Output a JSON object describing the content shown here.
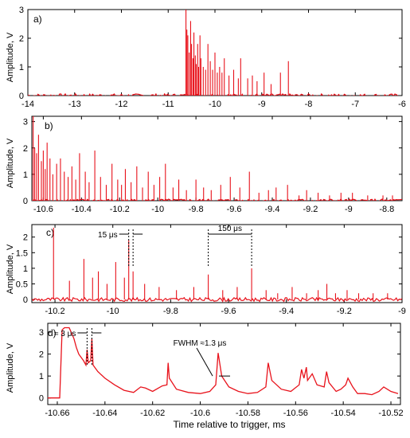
{
  "colors": {
    "trace": "#e8121b",
    "axis": "#000000",
    "background": "#ffffff"
  },
  "xlabel_main": "Time relative to trigger, ms",
  "chart_data": [
    {
      "type": "line",
      "panel": "a)",
      "ylabel": "Amplitude, V",
      "xlim": [
        -14,
        -6
      ],
      "ylim": [
        0,
        3
      ],
      "xticks": [
        -14,
        -13,
        -12,
        -11,
        -10,
        -9,
        -8,
        -7,
        -6
      ],
      "yticks": [
        0,
        1,
        2,
        3
      ],
      "baseline": 0.0,
      "series": [
        {
          "x": [
            -10.62,
            -10.6,
            -10.58,
            -10.55,
            -10.52,
            -10.5,
            -10.47,
            -10.45,
            -10.42,
            -10.4,
            -10.37,
            -10.35,
            -10.32,
            -10.3,
            -10.25,
            -10.2,
            -10.15,
            -10.1,
            -10.05,
            -10.0,
            -9.95,
            -9.9,
            -9.85,
            -9.8,
            -9.7,
            -9.6,
            -9.5,
            -9.45,
            -9.3,
            -9.2,
            -9.1,
            -8.95,
            -8.8,
            -8.6,
            -8.43
          ],
          "y": [
            3.0,
            2.3,
            2.1,
            1.5,
            2.6,
            1.8,
            1.3,
            2.2,
            1.4,
            1.1,
            1.8,
            1.0,
            2.1,
            1.3,
            1.0,
            0.9,
            1.8,
            1.2,
            0.9,
            1.5,
            0.8,
            1.0,
            0.8,
            1.3,
            0.7,
            0.9,
            0.6,
            1.3,
            0.6,
            0.7,
            0.5,
            0.8,
            0.4,
            0.8,
            1.2
          ]
        }
      ]
    },
    {
      "type": "line",
      "panel": "b)",
      "ylabel": "Amplitude, V",
      "xlim": [
        -10.66,
        -8.72
      ],
      "ylim": [
        0,
        3.2
      ],
      "xticks": [
        -10.6,
        -10.4,
        -10.2,
        -10,
        -9.8,
        -9.6,
        -9.4,
        -9.2,
        -9,
        -8.8
      ],
      "xtick_labels": [
        "-10.6",
        "-10.4",
        "-10.2",
        "-10",
        "-9.8",
        "-9.6",
        "-9.4",
        "-9.2",
        "-9",
        "-8.8"
      ],
      "yticks": [
        0,
        1,
        2,
        3
      ],
      "baseline": 0.0,
      "series": [
        {
          "x": [
            -10.653,
            -10.645,
            -10.635,
            -10.625,
            -10.61,
            -10.6,
            -10.59,
            -10.58,
            -10.565,
            -10.55,
            -10.53,
            -10.51,
            -10.49,
            -10.47,
            -10.45,
            -10.43,
            -10.41,
            -10.38,
            -10.36,
            -10.33,
            -10.3,
            -10.27,
            -10.24,
            -10.21,
            -10.19,
            -10.17,
            -10.14,
            -10.11,
            -10.08,
            -10.05,
            -10.02,
            -9.99,
            -9.96,
            -9.92,
            -9.89,
            -9.85,
            -9.8,
            -9.76,
            -9.72,
            -9.67,
            -9.62,
            -9.57,
            -9.52,
            -9.47,
            -9.42,
            -9.38,
            -9.32,
            -9.26,
            -9.22,
            -9.16,
            -9.1,
            -9.04,
            -8.98,
            -8.9,
            -8.82,
            -8.77
          ],
          "y": [
            3.2,
            2.0,
            1.8,
            2.5,
            1.5,
            1.9,
            1.2,
            2.2,
            1.6,
            1.0,
            1.4,
            1.6,
            1.1,
            0.9,
            1.3,
            0.8,
            1.8,
            1.1,
            0.7,
            1.9,
            0.9,
            0.6,
            1.4,
            0.8,
            0.6,
            1.2,
            0.7,
            1.3,
            0.5,
            1.1,
            0.6,
            0.9,
            1.4,
            0.5,
            0.8,
            0.4,
            0.8,
            0.5,
            0.4,
            0.6,
            0.9,
            0.5,
            1.1,
            0.3,
            0.4,
            0.5,
            0.6,
            0.2,
            0.4,
            0.3,
            0.2,
            0.3,
            0.3,
            0.2,
            0.2,
            0.2
          ]
        }
      ]
    },
    {
      "type": "line",
      "panel": "c)",
      "ylabel": "Amplitude, V",
      "xlim": [
        -10.28,
        -9
      ],
      "ylim": [
        -0.1,
        2.4
      ],
      "xticks": [
        -10.2,
        -10,
        -9.8,
        -9.6,
        -9.4,
        -9.2,
        -9
      ],
      "yticks": [
        0,
        0.5,
        1,
        1.5,
        2
      ],
      "yticklabels": [
        "0",
        "0.5",
        "1",
        "1.5",
        "2"
      ],
      "baseline": 0.0,
      "series": [
        {
          "x": [
            -10.205,
            -10.15,
            -10.1,
            -10.07,
            -10.05,
            -10.02,
            -9.99,
            -9.96,
            -9.945,
            -9.93,
            -9.89,
            -9.84,
            -9.78,
            -9.72,
            -9.67,
            -9.62,
            -9.57,
            -9.52,
            -9.47,
            -9.43,
            -9.38,
            -9.33,
            -9.29,
            -9.26,
            -9.23,
            -9.19,
            -9.15,
            -9.1,
            -9.05
          ],
          "y": [
            2.3,
            0.6,
            1.3,
            0.7,
            0.9,
            0.5,
            1.2,
            0.7,
            1.9,
            0.9,
            0.5,
            0.4,
            0.3,
            0.4,
            0.8,
            0.3,
            0.4,
            1.0,
            0.3,
            0.2,
            0.4,
            0.2,
            0.3,
            0.5,
            0.2,
            0.3,
            0.2,
            0.2,
            0.2
          ]
        }
      ],
      "annotations": [
        {
          "text": "15 μs",
          "x_from": -9.945,
          "x_to": -9.93
        },
        {
          "text": "150 μs",
          "x_from": -9.67,
          "x_to": -9.52
        }
      ]
    },
    {
      "type": "line",
      "panel": "d)",
      "ylabel": "Amplitude, V",
      "xlabel": "Time relative to trigger, ms",
      "xlim": [
        -10.664,
        -10.516
      ],
      "ylim": [
        -0.3,
        3.4
      ],
      "xticks": [
        -10.66,
        -10.64,
        -10.62,
        -10.6,
        -10.58,
        -10.56,
        -10.54,
        -10.52
      ],
      "xtick_labels": [
        "-10.66",
        "-10.64",
        "-10.62",
        "-10.6",
        "-10.58",
        "-10.56",
        "-10.54",
        "-10.52"
      ],
      "yticks": [
        0,
        1,
        2,
        3
      ],
      "baseline": 0.0,
      "series": [
        {
          "x": [
            -10.664,
            -10.659,
            -10.658,
            -10.657,
            -10.655,
            -10.653,
            -10.652,
            -10.651,
            -10.649,
            -10.648,
            -10.6475,
            -10.647,
            -10.646,
            -10.6455,
            -10.645,
            -10.643,
            -10.64,
            -10.636,
            -10.632,
            -10.628,
            -10.625,
            -10.623,
            -10.62,
            -10.616,
            -10.614,
            -10.6135,
            -10.613,
            -10.61,
            -10.605,
            -10.6,
            -10.596,
            -10.5935,
            -10.5925,
            -10.591,
            -10.588,
            -10.584,
            -10.58,
            -10.576,
            -10.5725,
            -10.5715,
            -10.57,
            -10.566,
            -10.562,
            -10.5585,
            -10.5575,
            -10.5565,
            -10.5555,
            -10.555,
            -10.553,
            -10.551,
            -10.548,
            -10.547,
            -10.546,
            -10.543,
            -10.541,
            -10.539,
            -10.538,
            -10.536,
            -10.534,
            -10.531,
            -10.528,
            -10.525,
            -10.523,
            -10.52,
            -10.517
          ],
          "y": [
            0,
            0,
            3.1,
            3.2,
            3.2,
            2.7,
            2.3,
            2.0,
            1.7,
            1.5,
            2.2,
            1.6,
            1.7,
            2.7,
            1.5,
            1.2,
            0.9,
            0.6,
            0.35,
            0.25,
            0.5,
            0.45,
            0.3,
            0.55,
            0.6,
            1.6,
            0.9,
            0.4,
            0.25,
            0.2,
            0.3,
            0.6,
            2.05,
            1.0,
            0.5,
            0.3,
            0.2,
            0.25,
            0.5,
            1.6,
            0.8,
            0.4,
            0.3,
            0.6,
            1.3,
            0.9,
            1.4,
            0.8,
            1.1,
            0.6,
            0.5,
            1.2,
            0.7,
            0.3,
            0.4,
            0.6,
            0.9,
            0.5,
            0.2,
            0.2,
            0.15,
            0.3,
            0.5,
            0.3,
            0.2
          ]
        }
      ],
      "annotations": [
        {
          "text": "≈ 3 μs",
          "x_from": -10.6475,
          "x_to": -10.6455
        },
        {
          "text": "FWHM ≈1.3 μs",
          "x_at": -10.5935
        }
      ]
    }
  ]
}
